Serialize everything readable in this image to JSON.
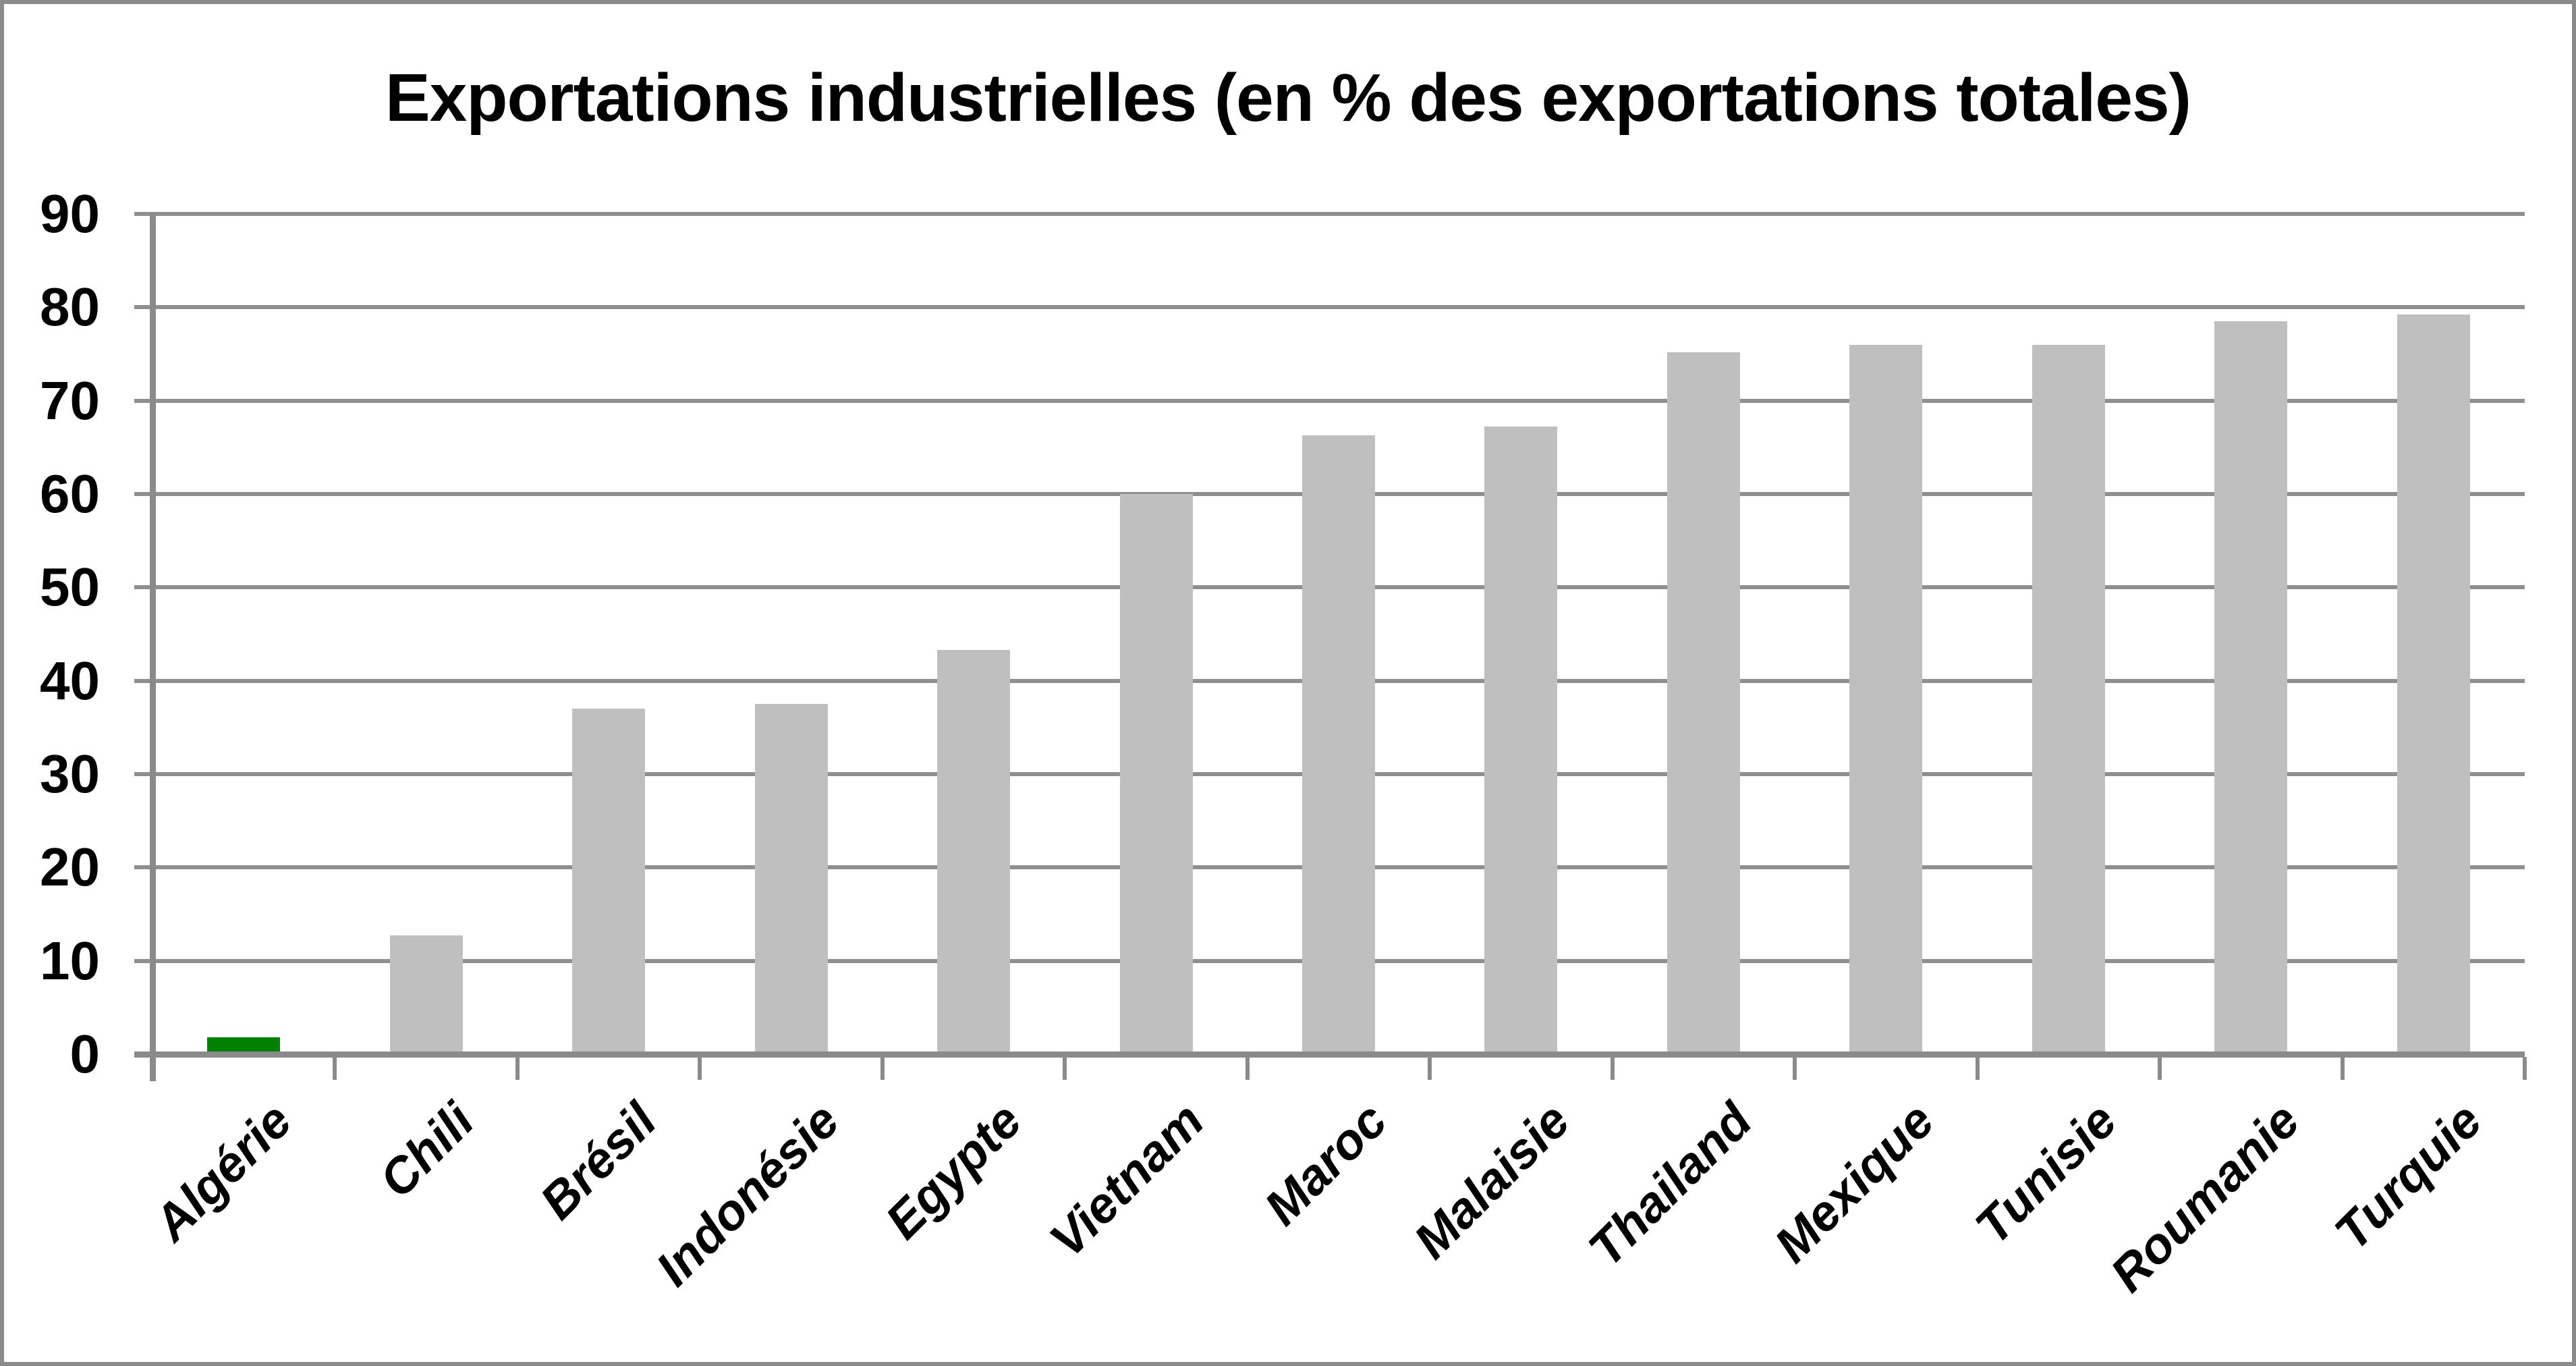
{
  "title": "Exportations industrielles (en % des exportations totales)",
  "colors": {
    "bar_default": "#BFBFBF",
    "bar_highlight": "#008000",
    "gridline": "#8F8F8F",
    "axis": "#8A8A8A",
    "frame": "#8A8A8A",
    "text": "#000000",
    "background": "#FFFFFF"
  },
  "chart_data": {
    "type": "bar",
    "title": "Exportations industrielles (en % des exportations totales)",
    "categories": [
      "Algérie",
      "Chili",
      "Brésil",
      "Indonésie",
      "Egypte",
      "Vietnam",
      "Maroc",
      "Malaisie",
      "Thailand",
      "Mexique",
      "Tunisie",
      "Roumanie",
      "Turquie"
    ],
    "values": [
      1.8,
      12.7,
      37,
      37.5,
      43.3,
      60,
      66.3,
      67.2,
      75.2,
      76,
      76,
      78.5,
      79.2
    ],
    "highlighted_category": "Algérie",
    "xlabel": "",
    "ylabel": "",
    "ylim": [
      0,
      90
    ],
    "yticks": [
      0,
      10,
      20,
      30,
      40,
      50,
      60,
      70,
      80,
      90
    ],
    "grid": true,
    "legend": false,
    "x_label_rotation_deg": 45
  }
}
